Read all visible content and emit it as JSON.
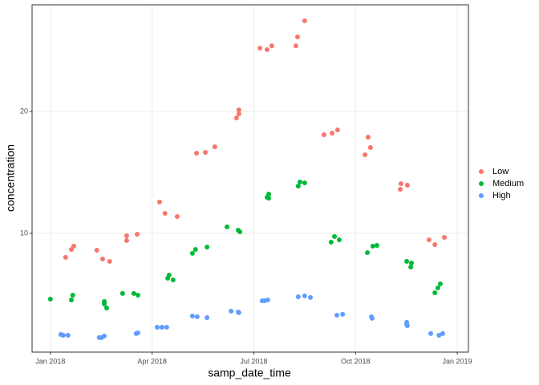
{
  "chart_data": {
    "type": "scatter",
    "x_label": "samp_date_time",
    "y_label": "concentration",
    "xlim": [
      -0.54,
      12.33
    ],
    "xticks": [
      {
        "value": 0,
        "label": "Jan 2018"
      },
      {
        "value": 3,
        "label": "Apr 2018"
      },
      {
        "value": 6,
        "label": "Jul 2018"
      },
      {
        "value": 9,
        "label": "Oct 2018"
      },
      {
        "value": 12,
        "label": "Jan 2019"
      }
    ],
    "ylim": [
      0.26,
      28.75
    ],
    "yticks": [
      10,
      20
    ],
    "grid": true,
    "series": [
      {
        "name": "Low",
        "color": "#f8766d",
        "x": [
          0.45,
          0.62,
          0.69,
          1.37,
          1.54,
          1.75,
          2.25,
          2.25,
          2.56,
          3.22,
          3.38,
          3.74,
          4.31,
          4.57,
          4.85,
          5.49,
          5.56,
          5.56,
          6.18,
          6.39,
          6.53,
          7.24,
          7.29,
          7.5,
          8.07,
          8.31,
          8.47,
          9.28,
          9.37,
          9.44,
          10.32,
          10.34,
          10.53,
          11.17,
          11.34,
          11.62
        ],
        "values": [
          8.03,
          8.68,
          8.95,
          8.62,
          7.9,
          7.7,
          9.41,
          9.8,
          9.93,
          12.57,
          11.64,
          11.38,
          16.58,
          16.64,
          17.1,
          19.47,
          19.8,
          20.13,
          25.2,
          25.07,
          25.39,
          25.39,
          26.12,
          27.43,
          18.09,
          18.22,
          18.49,
          16.45,
          17.89,
          17.04,
          13.62,
          14.08,
          13.95,
          9.47,
          9.08,
          9.67
        ]
      },
      {
        "name": "Medium",
        "color": "#00ba38",
        "x": [
          0,
          0.62,
          0.66,
          1.59,
          1.59,
          1.66,
          2.13,
          2.46,
          2.58,
          3.46,
          3.5,
          3.62,
          4.19,
          4.28,
          4.62,
          5.21,
          5.54,
          5.59,
          6.39,
          6.44,
          6.44,
          7.31,
          7.36,
          7.5,
          8.28,
          8.38,
          8.52,
          9.35,
          9.51,
          9.63,
          10.51,
          10.63,
          10.65,
          11.34,
          11.43,
          11.5
        ],
        "values": [
          4.61,
          4.54,
          4.93,
          4.41,
          4.21,
          3.88,
          5.07,
          5.07,
          4.93,
          6.32,
          6.58,
          6.18,
          8.36,
          8.68,
          8.88,
          10.53,
          10.26,
          10.13,
          12.96,
          13.22,
          12.89,
          13.88,
          14.21,
          14.14,
          9.28,
          9.74,
          9.47,
          8.42,
          8.95,
          9.01,
          7.7,
          7.24,
          7.57,
          5.13,
          5.53,
          5.86
        ]
      },
      {
        "name": "High",
        "color": "#619cff",
        "x": [
          0.31,
          0.38,
          0.52,
          1.44,
          1.51,
          1.59,
          2.53,
          2.58,
          3.15,
          3.29,
          3.43,
          4.19,
          4.33,
          4.62,
          5.33,
          5.54,
          5.56,
          6.25,
          6.32,
          6.41,
          7.31,
          7.5,
          7.67,
          8.45,
          8.62,
          9.47,
          9.49,
          10.51,
          10.51,
          10.53,
          11.22,
          11.46,
          11.57
        ],
        "values": [
          1.71,
          1.64,
          1.64,
          1.45,
          1.45,
          1.58,
          1.78,
          1.84,
          2.3,
          2.3,
          2.3,
          3.22,
          3.16,
          3.09,
          3.62,
          3.55,
          3.49,
          4.47,
          4.47,
          4.54,
          4.8,
          4.87,
          4.74,
          3.29,
          3.36,
          3.16,
          3.03,
          2.7,
          2.5,
          2.43,
          1.78,
          1.64,
          1.78
        ]
      }
    ]
  }
}
